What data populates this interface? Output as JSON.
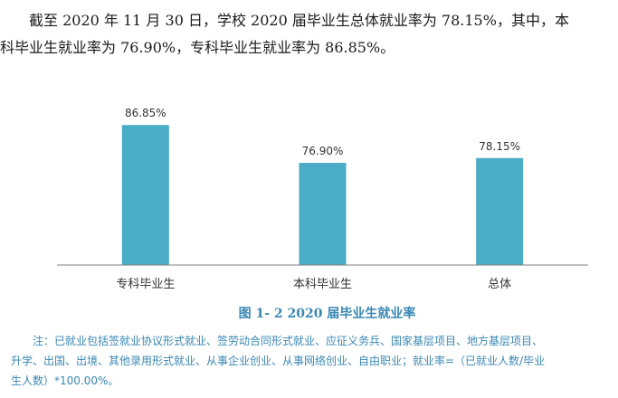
{
  "intro": {
    "line1": "截至 2020 年 11 月 30 日，学校 2020 届毕业生总体就业率为 78.15%，其中，本",
    "line2": "科毕业生就业率为 76.90%，专科毕业生就业率为 86.85%。"
  },
  "caption": "图 1- 2    2020 届毕业生就业率",
  "note": {
    "line1": "注：已就业包括签就业协议形式就业、签劳动合同形式就业、应征义务兵、国家基层项目、地方基层项目、",
    "line2": "升学、出国、出境、其他录用形式就业、从事企业创业、从事网络创业、自由职业；就业率=（已就业人数/毕业",
    "line3": "生人数）*100.00%。"
  },
  "chart_data": {
    "type": "bar",
    "categories": [
      "专科毕业生",
      "本科毕业生",
      "总体"
    ],
    "values": [
      86.85,
      76.9,
      78.15
    ],
    "data_labels": [
      "86.85%",
      "76.90%",
      "78.15%"
    ],
    "title": "",
    "xlabel": "",
    "ylabel": "",
    "ylim": [
      50,
      90
    ],
    "grid": false,
    "legend": "none",
    "bar_color": "#4bacc6",
    "axis_color": "#7f7f7f"
  }
}
